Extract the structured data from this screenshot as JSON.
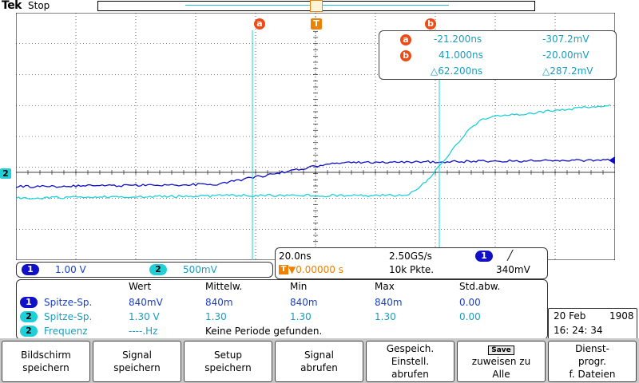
{
  "header": {
    "brand": "Tek",
    "state": "Stop"
  },
  "markers": {
    "cursor_a": "a",
    "cursor_b": "b",
    "trigger": "T",
    "ch2_ground": "2"
  },
  "cursors": {
    "a": {
      "time": "-21.200ns",
      "volt": "-307.2mV"
    },
    "b": {
      "time": "41.000ns",
      "volt": "-20.00mV"
    },
    "delta": {
      "time": "△62.200ns",
      "volt": "△287.2mV"
    }
  },
  "channels": {
    "ch1": {
      "num": "1",
      "scale": "1.00 V"
    },
    "ch2": {
      "num": "2",
      "scale": "500mV"
    }
  },
  "timebase": {
    "time_div": "20.0ns",
    "sample_rate": "2.50GS/s",
    "trigger_pos": "▼0.00000 s",
    "record_len": "10k Pkte.",
    "trig_level": "340mV",
    "trig_ch": "1",
    "trig_slope": "╱"
  },
  "measurements": {
    "headers": [
      "Wert",
      "Mittelw.",
      "Min",
      "Max",
      "Std.abw."
    ],
    "rows": [
      {
        "ch": "1",
        "name": "Spitze-Sp.",
        "values": [
          "840mV",
          "840m",
          "840m",
          "840m",
          "0.00"
        ]
      },
      {
        "ch": "2",
        "name": "Spitze-Sp.",
        "values": [
          "1.30 V",
          "1.30",
          "1.30",
          "1.30",
          "0.00"
        ]
      },
      {
        "ch": "2",
        "name": "Frequenz",
        "value": "----.Hz",
        "note": "Keine Periode gefunden."
      }
    ]
  },
  "datetime": {
    "date": "20 Feb",
    "year": "1908",
    "time": "16: 24: 34"
  },
  "buttons": [
    {
      "line1": "Bildschirm",
      "line2": "speichern"
    },
    {
      "line1": "Signal",
      "line2": "speichern"
    },
    {
      "line1": "Setup",
      "line2": "speichern"
    },
    {
      "line1": "Signal",
      "line2": "abrufen"
    },
    {
      "line1": "Gespeich.",
      "line2": "Einstell.",
      "line3": "abrufen"
    },
    {
      "save_label": "Save",
      "line1": "zuweisen zu",
      "line2": "Alle"
    },
    {
      "line1": "Dienst-",
      "line2": "progr.",
      "line3": "f. Dateien"
    }
  ],
  "colors": {
    "ch1": "#1010c8",
    "ch2": "#1fd0d8",
    "cursor": "#f04a16",
    "trigger": "#f08000",
    "grid": "#000000"
  }
}
